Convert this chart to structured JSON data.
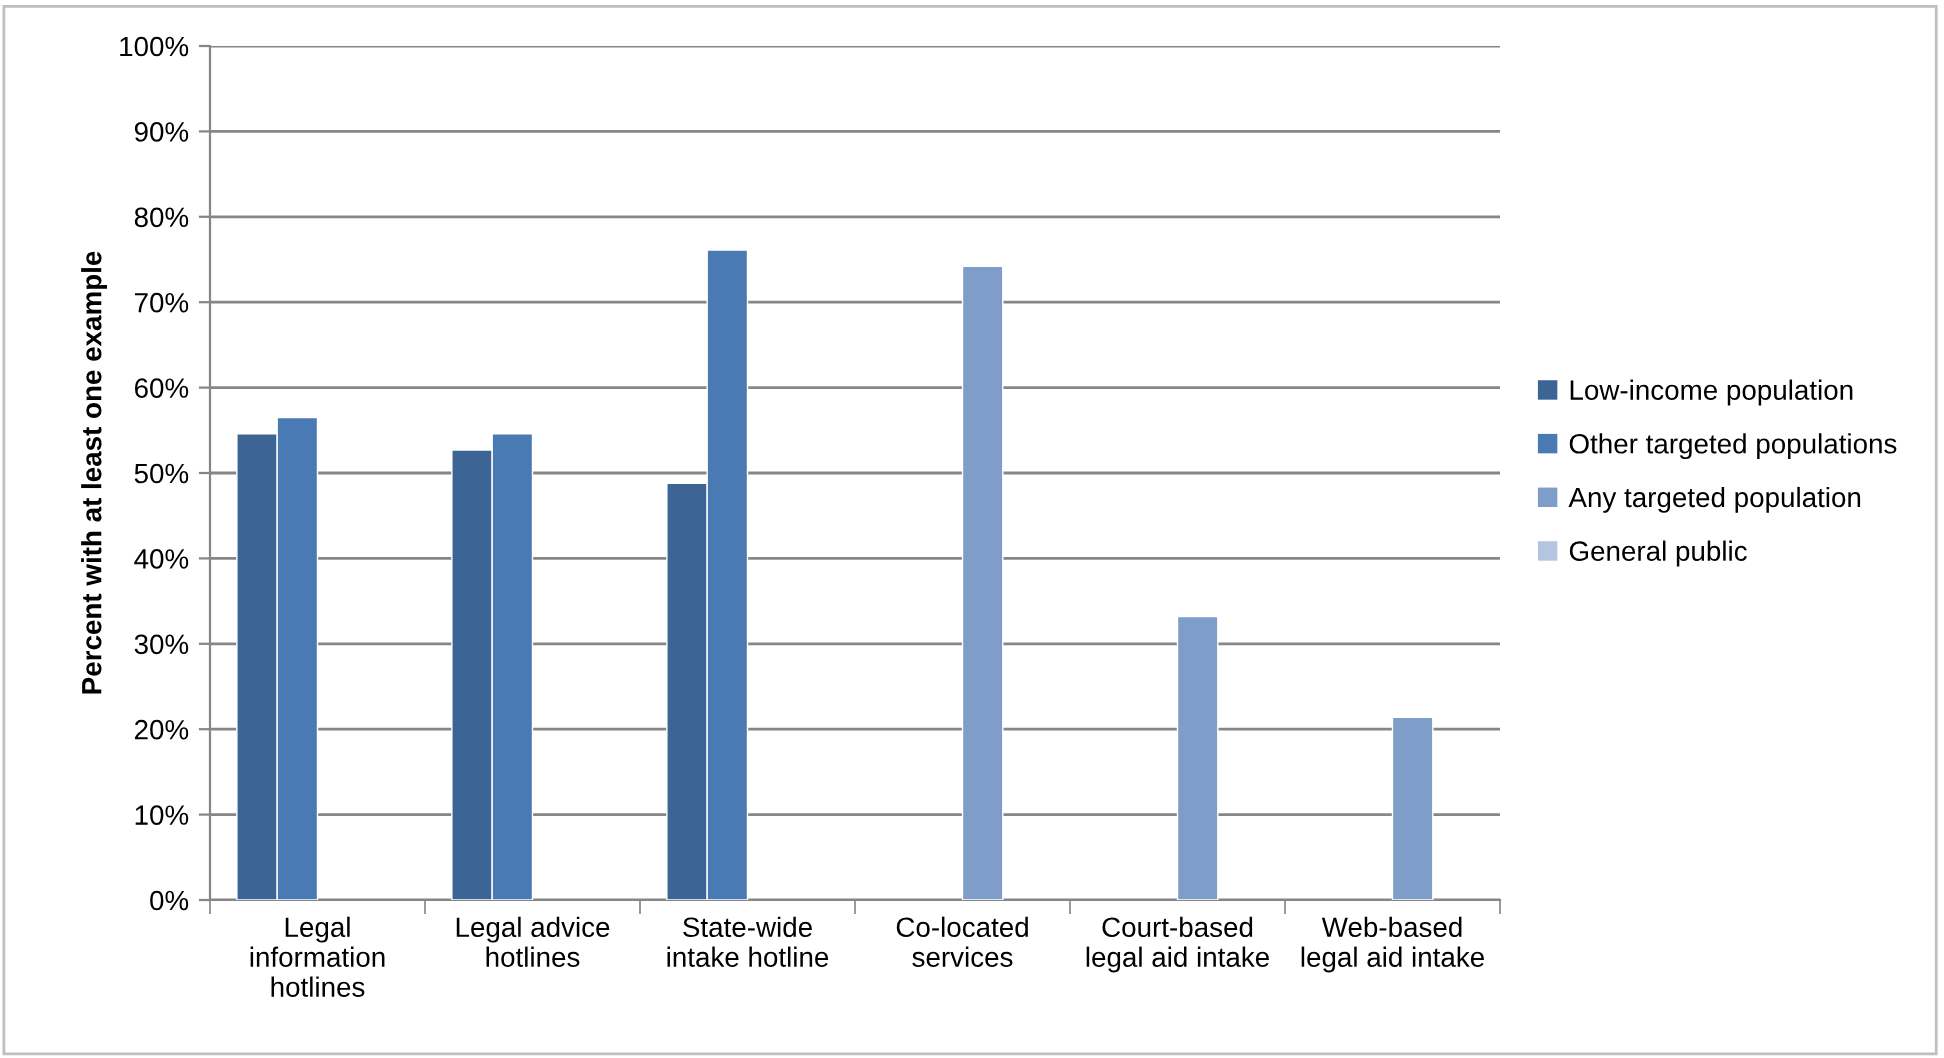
{
  "chart_data": {
    "type": "bar",
    "ylabel": "Percent with at least one example",
    "categories": [
      "Legal\ninformation\nhotlines",
      "Legal advice\nhotlines",
      "State-wide\nintake hotline",
      "Co-located\nservices",
      "Court-based\nlegal aid intake",
      "Web-based\nlegal aid intake"
    ],
    "series": [
      {
        "name": "Low-income population",
        "color": "#3c6494",
        "values": [
          54.6,
          52.7,
          48.8,
          null,
          null,
          null
        ]
      },
      {
        "name": "Other targeted populations",
        "color": "#4a7ab3",
        "values": [
          56.5,
          54.6,
          76.1,
          null,
          null,
          null
        ]
      },
      {
        "name": "Any targeted population",
        "color": "#7f9dc9",
        "values": [
          null,
          null,
          null,
          74.2,
          33.2,
          21.4
        ]
      },
      {
        "name": "General public",
        "color": "#b3c5e0",
        "values": [
          null,
          null,
          null,
          null,
          null,
          null
        ]
      }
    ],
    "ylim": [
      0,
      100
    ],
    "yticks": [
      {
        "value": 0,
        "label": "0%"
      },
      {
        "value": 10,
        "label": "10%"
      },
      {
        "value": 20,
        "label": "20%"
      },
      {
        "value": 30,
        "label": "30%"
      },
      {
        "value": 40,
        "label": "40%"
      },
      {
        "value": 50,
        "label": "50%"
      },
      {
        "value": 60,
        "label": "60%"
      },
      {
        "value": 70,
        "label": "70%"
      },
      {
        "value": 80,
        "label": "80%"
      },
      {
        "value": 90,
        "label": "90%"
      },
      {
        "value": 100,
        "label": "100%"
      }
    ],
    "grid": "y",
    "legend": "right"
  }
}
